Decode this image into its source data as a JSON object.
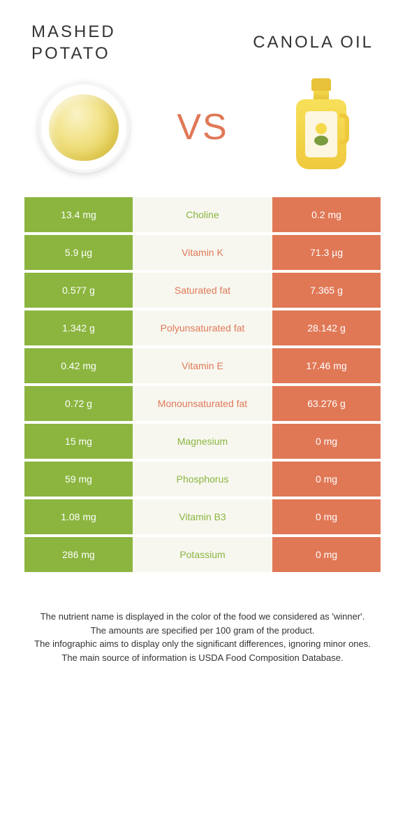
{
  "header": {
    "left_title": "MASHED POTATO",
    "right_title": "CANOLA OIL",
    "vs": "VS"
  },
  "colors": {
    "left": "#8bb53f",
    "right": "#e07856",
    "mid_bg": "#f7f7f0",
    "vs_color": "#e07856"
  },
  "rows": [
    {
      "left": "13.4 mg",
      "label": "Choline",
      "right": "0.2 mg",
      "winner": "left"
    },
    {
      "left": "5.9 µg",
      "label": "Vitamin K",
      "right": "71.3 µg",
      "winner": "right"
    },
    {
      "left": "0.577 g",
      "label": "Saturated fat",
      "right": "7.365 g",
      "winner": "right"
    },
    {
      "left": "1.342 g",
      "label": "Polyunsaturated fat",
      "right": "28.142 g",
      "winner": "right"
    },
    {
      "left": "0.42 mg",
      "label": "Vitamin E",
      "right": "17.46 mg",
      "winner": "right"
    },
    {
      "left": "0.72 g",
      "label": "Monounsaturated fat",
      "right": "63.276 g",
      "winner": "right"
    },
    {
      "left": "15 mg",
      "label": "Magnesium",
      "right": "0 mg",
      "winner": "left"
    },
    {
      "left": "59 mg",
      "label": "Phosphorus",
      "right": "0 mg",
      "winner": "left"
    },
    {
      "left": "1.08 mg",
      "label": "Vitamin B3",
      "right": "0 mg",
      "winner": "left"
    },
    {
      "left": "286 mg",
      "label": "Potassium",
      "right": "0 mg",
      "winner": "left"
    }
  ],
  "footer": {
    "line1": "The nutrient name is displayed in the color of the food we considered as 'winner'.",
    "line2": "The amounts are specified per 100 gram of the product.",
    "line3": "The infographic aims to display only the significant differences, ignoring minor ones.",
    "line4": "The main source of information is USDA Food Composition Database."
  }
}
